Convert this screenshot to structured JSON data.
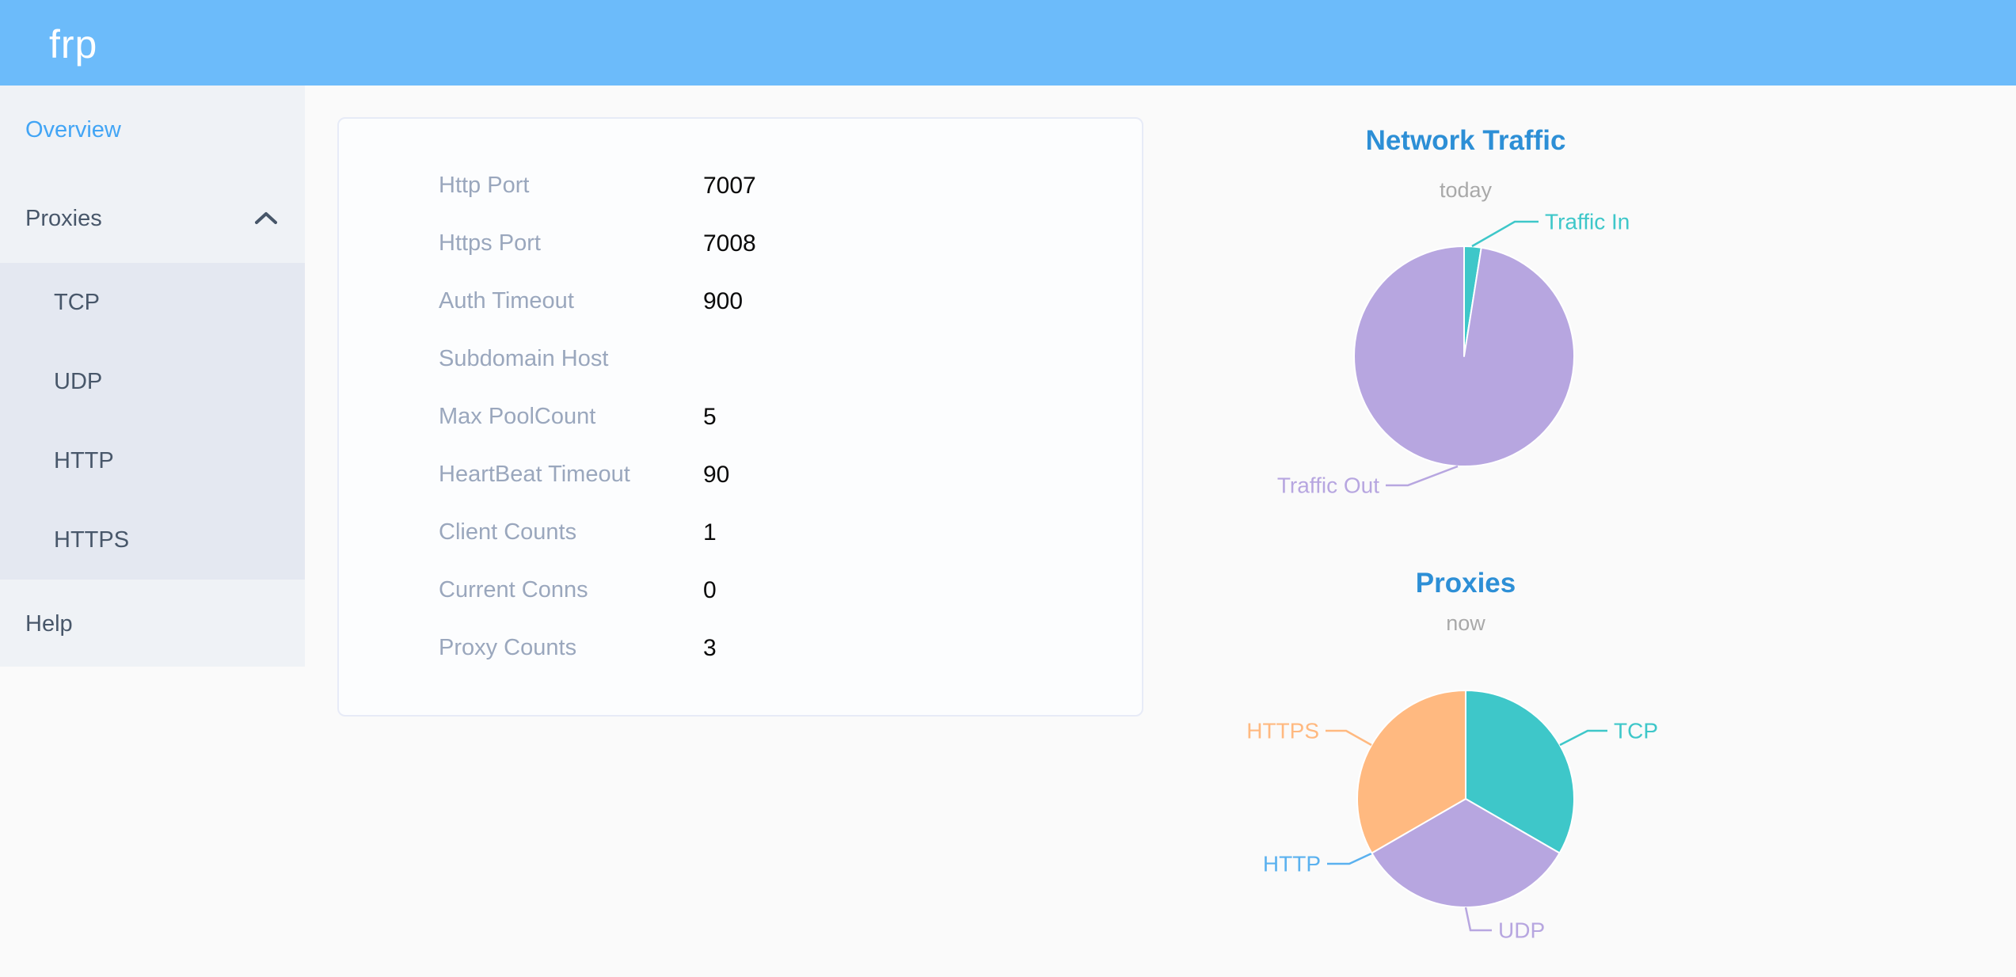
{
  "header": {
    "logo": "frp"
  },
  "sidebar": {
    "overview_label": "Overview",
    "proxies_label": "Proxies",
    "proxies_children": [
      "TCP",
      "UDP",
      "HTTP",
      "HTTPS"
    ],
    "help_label": "Help",
    "active_item": "Overview",
    "proxies_expanded": true
  },
  "server_info": {
    "rows": [
      {
        "label": "Http Port",
        "value": "7007"
      },
      {
        "label": "Https Port",
        "value": "7008"
      },
      {
        "label": "Auth Timeout",
        "value": "900"
      },
      {
        "label": "Subdomain Host",
        "value": ""
      },
      {
        "label": "Max PoolCount",
        "value": "5"
      },
      {
        "label": "HeartBeat Timeout",
        "value": "90"
      },
      {
        "label": "Client Counts",
        "value": "1"
      },
      {
        "label": "Current Conns",
        "value": "0"
      },
      {
        "label": "Proxy Counts",
        "value": "3"
      }
    ]
  },
  "chart_data": [
    {
      "id": "network-traffic",
      "type": "pie",
      "title": "Network Traffic",
      "subtitle": "today",
      "value_unit": "percent share (estimated from slice angles; no numeric labels shown)",
      "legend_position": "leader-line labels, no legend box",
      "series": [
        {
          "name": "Traffic In",
          "value": 2.5,
          "color": "#3ec7c9"
        },
        {
          "name": "Traffic Out",
          "value": 97.5,
          "color": "#b7a6e0"
        }
      ]
    },
    {
      "id": "proxies",
      "type": "pie",
      "title": "Proxies",
      "subtitle": "now",
      "value_unit": "proxy count (total matches Proxy Counts = 3)",
      "legend_position": "leader-line labels, no legend box",
      "series": [
        {
          "name": "TCP",
          "value": 1,
          "color": "#3ec7c9"
        },
        {
          "name": "UDP",
          "value": 1,
          "color": "#b7a6e0"
        },
        {
          "name": "HTTP",
          "value": 0,
          "color": "#5ab1ef"
        },
        {
          "name": "HTTPS",
          "value": 1,
          "color": "#ffb980"
        }
      ]
    }
  ],
  "colors": {
    "header_bg": "#6cbbfa",
    "sidebar_bg": "#eff2f6",
    "submenu_bg": "#e4e8f1",
    "active_menu_item": "#42a5f5",
    "menu_text": "#48576a",
    "chart_title_blue": "#2d8fd6",
    "info_label_gray": "#9aa7bd",
    "pie_teal": "#3ec7c9",
    "pie_purple": "#b7a6e0",
    "pie_blue": "#5ab1ef",
    "pie_orange": "#ffb980"
  }
}
